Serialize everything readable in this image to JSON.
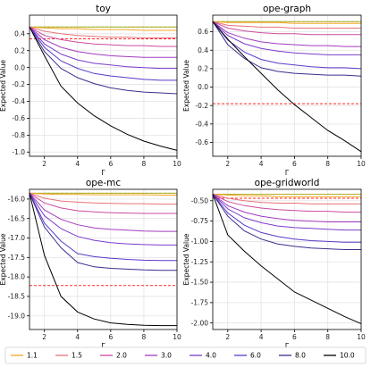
{
  "legend": {
    "title": "",
    "entries": [
      {
        "label": "1.1",
        "color": "#f5a623"
      },
      {
        "label": "1.5",
        "color": "#e8737a"
      },
      {
        "label": "2.0",
        "color": "#cc4aa0"
      },
      {
        "label": "3.0",
        "color": "#a43bbf"
      },
      {
        "label": "4.0",
        "color": "#7b3ccc"
      },
      {
        "label": "6.0",
        "color": "#5b3ac8"
      },
      {
        "label": "8.0",
        "color": "#3a2e8c"
      },
      {
        "label": "10.0",
        "color": "#000000"
      }
    ]
  },
  "reference_line_colors": {
    "upper": "#7fbf3f",
    "upper_dash": "#d4a017",
    "lower": "#ff2a2a"
  },
  "chart_data": [
    {
      "type": "line",
      "title": "toy",
      "xlabel": "Γ",
      "ylabel": "Expected Value",
      "xlim": [
        1.1,
        10
      ],
      "ylim": [
        -1.05,
        0.62
      ],
      "xticks": [
        2,
        4,
        6,
        8,
        10
      ],
      "yticks": [
        -1.0,
        -0.8,
        -0.6,
        -0.4,
        -0.2,
        0.0,
        0.2,
        0.4
      ],
      "grid": true,
      "x": [
        1.1,
        2,
        3,
        4,
        5,
        6,
        7,
        8,
        9,
        10
      ],
      "reference_lines": {
        "upper": 0.48,
        "lower": 0.34
      },
      "series": [
        {
          "name": "1.1",
          "values": [
            0.48,
            0.47,
            0.46,
            0.46,
            0.45,
            0.45,
            0.45,
            0.44,
            0.44,
            0.44
          ]
        },
        {
          "name": "1.5",
          "values": [
            0.48,
            0.43,
            0.4,
            0.38,
            0.37,
            0.36,
            0.36,
            0.35,
            0.35,
            0.35
          ]
        },
        {
          "name": "2.0",
          "values": [
            0.48,
            0.38,
            0.33,
            0.3,
            0.28,
            0.27,
            0.26,
            0.26,
            0.25,
            0.25
          ]
        },
        {
          "name": "3.0",
          "values": [
            0.48,
            0.33,
            0.24,
            0.19,
            0.16,
            0.14,
            0.13,
            0.12,
            0.12,
            0.12
          ]
        },
        {
          "name": "4.0",
          "values": [
            0.48,
            0.28,
            0.16,
            0.09,
            0.05,
            0.03,
            0.01,
            0.0,
            -0.01,
            -0.01
          ]
        },
        {
          "name": "6.0",
          "values": [
            0.48,
            0.24,
            0.08,
            -0.01,
            -0.07,
            -0.1,
            -0.12,
            -0.14,
            -0.15,
            -0.15
          ]
        },
        {
          "name": "8.0",
          "values": [
            0.48,
            0.19,
            -0.01,
            -0.12,
            -0.19,
            -0.24,
            -0.27,
            -0.29,
            -0.3,
            -0.31
          ]
        },
        {
          "name": "10.0",
          "values": [
            0.48,
            0.14,
            -0.22,
            -0.42,
            -0.57,
            -0.69,
            -0.79,
            -0.87,
            -0.93,
            -0.98
          ]
        }
      ]
    },
    {
      "type": "line",
      "title": "ope-graph",
      "xlabel": "Γ",
      "ylabel": "Expected Value",
      "xlim": [
        1.1,
        10
      ],
      "ylim": [
        -0.75,
        0.78
      ],
      "xticks": [
        2,
        4,
        6,
        8,
        10
      ],
      "yticks": [
        -0.6,
        -0.4,
        -0.2,
        0.0,
        0.2,
        0.4,
        0.6
      ],
      "grid": true,
      "x": [
        1.1,
        2,
        3,
        4,
        5,
        6,
        7,
        8,
        9,
        10
      ],
      "reference_lines": {
        "upper": 0.71,
        "lower": -0.18
      },
      "series": [
        {
          "name": "1.1",
          "values": [
            0.71,
            0.7,
            0.7,
            0.7,
            0.7,
            0.69,
            0.69,
            0.69,
            0.69,
            0.69
          ]
        },
        {
          "name": "1.5",
          "values": [
            0.71,
            0.67,
            0.66,
            0.65,
            0.65,
            0.64,
            0.64,
            0.64,
            0.64,
            0.64
          ]
        },
        {
          "name": "2.0",
          "values": [
            0.71,
            0.64,
            0.61,
            0.59,
            0.58,
            0.58,
            0.57,
            0.57,
            0.57,
            0.57
          ]
        },
        {
          "name": "3.0",
          "values": [
            0.71,
            0.59,
            0.53,
            0.49,
            0.47,
            0.46,
            0.45,
            0.45,
            0.44,
            0.44
          ]
        },
        {
          "name": "4.0",
          "values": [
            0.71,
            0.56,
            0.47,
            0.42,
            0.39,
            0.37,
            0.36,
            0.35,
            0.35,
            0.35
          ]
        },
        {
          "name": "6.0",
          "values": [
            0.71,
            0.51,
            0.38,
            0.3,
            0.26,
            0.24,
            0.22,
            0.21,
            0.21,
            0.2
          ]
        },
        {
          "name": "8.0",
          "values": [
            0.71,
            0.46,
            0.31,
            0.21,
            0.17,
            0.15,
            0.14,
            0.13,
            0.13,
            0.12
          ]
        },
        {
          "name": "10.0",
          "values": [
            0.71,
            0.52,
            0.33,
            0.15,
            -0.03,
            -0.19,
            -0.33,
            -0.47,
            -0.58,
            -0.7
          ]
        }
      ]
    },
    {
      "type": "line",
      "title": "ope-mc",
      "xlabel": "Γ",
      "ylabel": "Expected Value",
      "xlim": [
        1.1,
        10
      ],
      "ylim": [
        -19.35,
        -15.75
      ],
      "xticks": [
        2,
        4,
        6,
        8,
        10
      ],
      "yticks": [
        -19.0,
        -18.5,
        -18.0,
        -17.5,
        -17.0,
        -16.5,
        -16.0
      ],
      "grid": true,
      "x": [
        1.1,
        2,
        3,
        4,
        5,
        6,
        7,
        8,
        9,
        10
      ],
      "reference_lines": {
        "upper": -15.85,
        "lower": -18.22
      },
      "series": [
        {
          "name": "1.1",
          "values": [
            -15.85,
            -15.87,
            -15.88,
            -15.88,
            -15.89,
            -15.89,
            -15.89,
            -15.89,
            -15.9,
            -15.9
          ]
        },
        {
          "name": "1.5",
          "values": [
            -15.85,
            -15.98,
            -16.05,
            -16.08,
            -16.1,
            -16.11,
            -16.12,
            -16.12,
            -16.13,
            -16.13
          ]
        },
        {
          "name": "2.0",
          "values": [
            -15.85,
            -16.1,
            -16.23,
            -16.3,
            -16.33,
            -16.35,
            -16.36,
            -16.37,
            -16.37,
            -16.37
          ]
        },
        {
          "name": "3.0",
          "values": [
            -15.85,
            -16.28,
            -16.52,
            -16.66,
            -16.74,
            -16.78,
            -16.8,
            -16.82,
            -16.83,
            -16.83
          ]
        },
        {
          "name": "4.0",
          "values": [
            -15.85,
            -16.43,
            -16.76,
            -16.96,
            -17.06,
            -17.12,
            -17.15,
            -17.17,
            -17.18,
            -17.18
          ]
        },
        {
          "name": "6.0",
          "values": [
            -15.85,
            -16.62,
            -17.08,
            -17.4,
            -17.48,
            -17.52,
            -17.55,
            -17.57,
            -17.58,
            -17.58
          ]
        },
        {
          "name": "8.0",
          "values": [
            -15.85,
            -16.72,
            -17.25,
            -17.63,
            -17.74,
            -17.78,
            -17.8,
            -17.82,
            -17.83,
            -17.83
          ]
        },
        {
          "name": "10.0",
          "values": [
            -15.85,
            -17.45,
            -18.5,
            -18.9,
            -19.08,
            -19.18,
            -19.22,
            -19.24,
            -19.25,
            -19.25
          ]
        }
      ]
    },
    {
      "type": "line",
      "title": "ope-gridworld",
      "xlabel": "Γ",
      "ylabel": "Expected Value",
      "xlim": [
        1.1,
        10
      ],
      "ylim": [
        -2.08,
        -0.36
      ],
      "xticks": [
        2,
        4,
        6,
        8,
        10
      ],
      "yticks": [
        -2.0,
        -1.75,
        -1.5,
        -1.25,
        -1.0,
        -0.75,
        -0.5
      ],
      "grid": true,
      "x": [
        1.1,
        2,
        3,
        4,
        5,
        6,
        7,
        8,
        9,
        10
      ],
      "reference_lines": {
        "upper": -0.42,
        "lower": -0.47
      },
      "series": [
        {
          "name": "1.1",
          "values": [
            -0.42,
            -0.43,
            -0.44,
            -0.44,
            -0.45,
            -0.45,
            -0.45,
            -0.45,
            -0.45,
            -0.45
          ]
        },
        {
          "name": "1.5",
          "values": [
            -0.42,
            -0.47,
            -0.5,
            -0.52,
            -0.53,
            -0.53,
            -0.54,
            -0.54,
            -0.54,
            -0.54
          ]
        },
        {
          "name": "2.0",
          "values": [
            -0.42,
            -0.51,
            -0.56,
            -0.59,
            -0.61,
            -0.62,
            -0.63,
            -0.63,
            -0.64,
            -0.64
          ]
        },
        {
          "name": "3.0",
          "values": [
            -0.42,
            -0.56,
            -0.64,
            -0.69,
            -0.72,
            -0.74,
            -0.75,
            -0.76,
            -0.76,
            -0.76
          ]
        },
        {
          "name": "4.0",
          "values": [
            -0.42,
            -0.6,
            -0.71,
            -0.77,
            -0.81,
            -0.83,
            -0.84,
            -0.85,
            -0.86,
            -0.86
          ]
        },
        {
          "name": "6.0",
          "values": [
            -0.42,
            -0.65,
            -0.8,
            -0.89,
            -0.94,
            -0.97,
            -0.99,
            -1.0,
            -1.01,
            -1.01
          ]
        },
        {
          "name": "8.0",
          "values": [
            -0.42,
            -0.69,
            -0.87,
            -0.97,
            -1.03,
            -1.06,
            -1.08,
            -1.09,
            -1.1,
            -1.1
          ]
        },
        {
          "name": "10.0",
          "values": [
            -0.42,
            -0.92,
            -1.12,
            -1.3,
            -1.46,
            -1.62,
            -1.72,
            -1.82,
            -1.92,
            -2.01
          ]
        }
      ]
    }
  ]
}
